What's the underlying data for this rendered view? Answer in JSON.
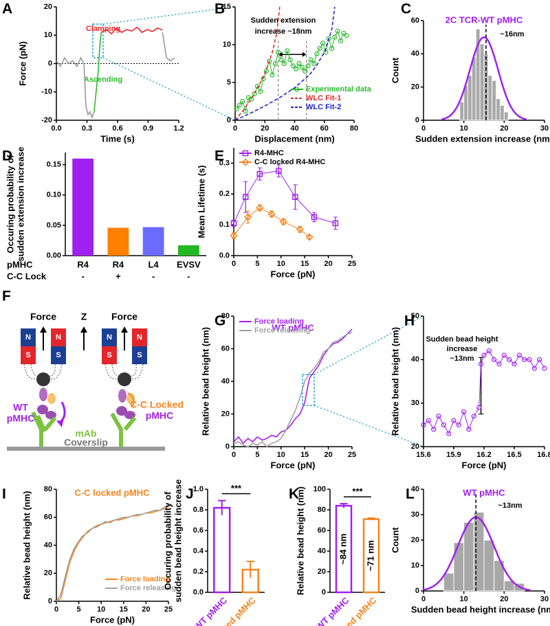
{
  "chart_data": [
    {
      "type": "line",
      "panel_label": "A",
      "xlabel": "Time (s)",
      "ylabel": "Force (pN)",
      "xlim": [
        0,
        1.2
      ],
      "xticks": [
        {
          "value": 0,
          "label": "0.0"
        },
        0.3,
        0.6,
        0.9,
        1.2
      ],
      "ylim": [
        -20,
        20
      ],
      "yticks": [
        -20,
        -10,
        0,
        10,
        20
      ],
      "zero_line": true,
      "annotations": [
        {
          "text": "Clamping",
          "color": "#e8262a"
        },
        {
          "text": "Ascending",
          "color": "#2db82d"
        }
      ],
      "series": [
        {
          "color": "#9a9a9a",
          "x": [
            0,
            0.04,
            0.08,
            0.12,
            0.16,
            0.2,
            0.24,
            0.27,
            0.29,
            0.31,
            0.33,
            0.35,
            0.37,
            1.03,
            1.04,
            1.08,
            1.12,
            1.16
          ],
          "values": [
            1,
            -1,
            2,
            0,
            1,
            -1,
            2,
            0,
            -15,
            -18,
            -17,
            -19,
            -17,
            null,
            11,
            2,
            1,
            2
          ]
        },
        {
          "color": "#2db82d",
          "x": [
            0.37,
            0.39,
            0.41,
            0.42,
            0.43,
            0.44
          ],
          "values": [
            -17,
            -10,
            -3,
            3,
            8,
            11
          ]
        },
        {
          "color": "#e8262a",
          "x": [
            0.44,
            0.49,
            0.54,
            0.59,
            0.64,
            0.69,
            0.74,
            0.79,
            0.84,
            0.89,
            0.94,
            0.99,
            1.04
          ],
          "values": [
            11,
            12,
            10.5,
            12.5,
            11,
            12,
            11.5,
            12.8,
            11,
            12,
            11.3,
            12.5,
            11.8
          ]
        }
      ]
    },
    {
      "type": "line",
      "panel_label": "B",
      "xlabel": "Displacement (nm)",
      "xlim": [
        0,
        80
      ],
      "xticks": [
        0,
        20,
        40,
        60,
        80
      ],
      "ylim": [
        0,
        15
      ],
      "yticks": [
        0,
        5,
        10,
        15
      ],
      "legend": "lower right",
      "legend_text_colored": true,
      "annotations": [
        {
          "text": "Sudden extension",
          "color": "#000000"
        },
        {
          "text": "increase ~18nm",
          "color": "#000000"
        }
      ],
      "vlines": [
        29,
        48
      ],
      "series": [
        {
          "name": "Experimental data",
          "color": "#2db82d",
          "marker": "circle",
          "x": [
            1,
            3,
            5,
            7,
            9,
            11,
            13,
            15,
            17,
            19,
            21,
            23,
            25,
            27,
            29,
            31,
            33,
            35,
            37,
            39,
            41,
            43,
            45,
            47,
            49,
            51,
            53,
            55,
            57,
            59,
            61,
            63,
            65,
            67,
            69,
            71,
            73,
            75
          ],
          "values": [
            1.5,
            2,
            2.5,
            1.2,
            3,
            2.8,
            3.5,
            4.5,
            3.8,
            5.5,
            6.5,
            7.8,
            6,
            7.5,
            9,
            8,
            7.5,
            9.2,
            8,
            7.2,
            6.8,
            7.5,
            7,
            6.5,
            7.2,
            8,
            7.5,
            8.8,
            9.5,
            10.2,
            9,
            10.8,
            9.5,
            11,
            11.8,
            10.5,
            11.5,
            11.2
          ]
        },
        {
          "name": "WLC Fit-1",
          "color": "#e8262a",
          "dashed": true,
          "x": [
            0,
            5,
            10,
            15,
            20,
            25,
            28,
            30
          ],
          "values": [
            0,
            1.2,
            2.6,
            4.2,
            6.2,
            9,
            11.5,
            15
          ]
        },
        {
          "name": "WLC Fit-2",
          "color": "#1c24c8",
          "dashed": true,
          "x": [
            0,
            10,
            20,
            30,
            40,
            50,
            55,
            60,
            65,
            67
          ],
          "values": [
            0,
            0.9,
            1.9,
            3,
            4.3,
            6,
            7.3,
            9,
            12,
            15
          ]
        }
      ]
    },
    {
      "type": "histogram",
      "panel_label": "C",
      "title": "2C TCR-WT pMHC",
      "title_color": "#a020f0",
      "xlabel": "Sudden extension increase (nm)",
      "ylabel": "Count",
      "xlim": [
        0,
        30
      ],
      "xticks": [
        0,
        10,
        20,
        30
      ],
      "ylim": [
        0,
        60
      ],
      "yticks": [
        0,
        20,
        40,
        60
      ],
      "annotations": [
        {
          "text": "~16nm",
          "color": "#000000"
        }
      ],
      "bins": [
        9,
        10,
        11,
        12,
        13,
        14,
        15,
        16,
        17,
        18,
        19,
        20,
        21
      ],
      "counts": [
        11,
        21,
        27,
        38,
        55,
        46,
        40,
        27,
        24,
        13,
        9,
        5
      ],
      "color": "#a8a8a8",
      "fit": {
        "mean": 15,
        "sd": 3.5,
        "amplitude": 50
      },
      "fit_color": "#a020f0",
      "mean_line": 15.5
    },
    {
      "type": "bar",
      "panel_label": "D",
      "ylabel": [
        "Occuring probability of",
        "sudden extension increase"
      ],
      "ylim": [
        0,
        0.17
      ],
      "yticks": [
        {
          "value": 0,
          "label": "0.00"
        },
        {
          "value": 0.05,
          "label": "0.05"
        },
        {
          "value": 0.1,
          "label": "0.10"
        },
        {
          "value": 0.15,
          "label": "0.15"
        }
      ],
      "category_label": "pMHC",
      "categories": [
        "R4",
        "R4",
        "L4",
        "EVSV"
      ],
      "row_label": "C-C Lock",
      "row_values": [
        "-",
        "+",
        "-",
        "-"
      ],
      "values": [
        0.16,
        0.046,
        0.047,
        0.017
      ],
      "colors": [
        "#a020f0",
        "#ff8000",
        "#6b6bff",
        "#22b822"
      ]
    },
    {
      "type": "line",
      "panel_label": "E",
      "xlabel": "Force (pN)",
      "ylabel": "Mean Lifetime (s)",
      "xlim": [
        0,
        25
      ],
      "xticks": [
        0,
        5,
        10,
        15,
        20,
        25
      ],
      "ylim": [
        0,
        0.35
      ],
      "yticks": [
        {
          "value": 0,
          "label": "0.0"
        },
        0.1,
        0.2,
        0.3
      ],
      "legend": "upper left",
      "series": [
        {
          "name": "R4-MHC",
          "color": "#a020f0",
          "marker": "square",
          "x": [
            0,
            2.5,
            5.5,
            9.5,
            13,
            17,
            21.5
          ],
          "values": [
            0.105,
            0.19,
            0.265,
            0.275,
            0.19,
            0.125,
            0.105
          ],
          "errors": [
            0.01,
            0.05,
            0.02,
            0.02,
            0.04,
            0.015,
            0.02
          ]
        },
        {
          "name": "C-C locked R4-MHC",
          "color": "#f5841f",
          "marker": "diamond",
          "x": [
            0,
            3,
            5.5,
            8,
            10.5,
            14,
            16
          ],
          "values": [
            0.065,
            0.125,
            0.155,
            0.135,
            0.11,
            0.085,
            0.06
          ],
          "errors": [
            0.01,
            0.02,
            0.01,
            0.01,
            0.01,
            0.01,
            0.005
          ]
        }
      ]
    },
    {
      "type": "line",
      "panel_label": "G",
      "title": "WT pMHC",
      "title_color": "#a020f0",
      "xlabel": "Force (pN)",
      "ylabel": "Relative bead height (nm)",
      "xlim": [
        0,
        25
      ],
      "xticks": [
        0,
        5,
        10,
        15,
        20,
        25
      ],
      "ylim": [
        0,
        80
      ],
      "yticks": [
        0,
        20,
        40,
        60,
        80
      ],
      "legend": "upper left",
      "legend_text_colored": true,
      "series": [
        {
          "name": "Force loading",
          "color": "#a020f0",
          "x": [
            0,
            1,
            2,
            3,
            4,
            5,
            6,
            7,
            8,
            9,
            10,
            11,
            12,
            13,
            14,
            15,
            16,
            17,
            18,
            19,
            20,
            21,
            22,
            23,
            24,
            25
          ],
          "values": [
            3,
            6,
            2,
            5,
            3,
            6,
            4,
            5,
            7,
            6,
            9,
            10,
            13,
            17,
            20,
            27,
            42,
            46,
            50,
            56,
            60,
            63,
            64,
            66,
            69,
            72
          ]
        },
        {
          "name": "Force releasing",
          "color": "#a0a0a0",
          "x": [
            0,
            1,
            2,
            3,
            4,
            5,
            6,
            7,
            8,
            9,
            10,
            11,
            12,
            13,
            14,
            15,
            16,
            17,
            18,
            19,
            20,
            21,
            22,
            23,
            24,
            25
          ],
          "values": [
            2,
            3,
            1,
            0,
            2,
            1,
            3,
            0,
            2,
            3,
            5,
            10,
            16,
            22,
            30,
            40,
            45,
            48,
            52,
            58,
            60,
            64,
            65,
            67,
            69,
            70
          ]
        }
      ]
    },
    {
      "type": "line",
      "panel_label": "H",
      "xlabel": "Force (pN)",
      "ylabel": "Relative bead height (nm)",
      "xlim": [
        15.6,
        16.8
      ],
      "xticks": [
        15.6,
        15.9,
        16.2,
        16.5,
        16.8
      ],
      "ylim": [
        20,
        50
      ],
      "yticks": [
        20,
        30,
        40,
        50
      ],
      "annotations": [
        {
          "text": "Sudden bead height",
          "color": "#000000"
        },
        {
          "text": "increase",
          "color": "#000000"
        },
        {
          "text": "~13nm",
          "color": "#000000"
        }
      ],
      "step_x": 16.17,
      "step_bar": [
        27.5,
        40.5
      ],
      "series": [
        {
          "color": "#a020f0",
          "marker": "circle",
          "x": [
            15.6,
            15.65,
            15.7,
            15.75,
            15.8,
            15.85,
            15.9,
            15.95,
            16,
            16.05,
            16.1,
            16.15,
            16.17,
            16.2,
            16.25,
            16.3,
            16.35,
            16.4,
            16.45,
            16.5,
            16.55,
            16.6,
            16.65,
            16.7,
            16.75,
            16.8
          ],
          "values": [
            25,
            26,
            24,
            27,
            25,
            23,
            26,
            25,
            28,
            24,
            27,
            29,
            39,
            41,
            42,
            40,
            39,
            41,
            40,
            39,
            41,
            40,
            40,
            38,
            40,
            38
          ]
        }
      ]
    },
    {
      "type": "line",
      "panel_label": "I",
      "title": "C-C locked pMHC",
      "title_color": "#f5841f",
      "xlabel": "Force (pN)",
      "ylabel": "Relative bead height (nm)",
      "xlim": [
        0,
        25
      ],
      "xticks": [
        0,
        5,
        10,
        15,
        20,
        25
      ],
      "ylim": [
        0,
        80
      ],
      "yticks": [
        0,
        20,
        40,
        60,
        80
      ],
      "legend": "lower right",
      "legend_text_colored": true,
      "series": [
        {
          "name": "Force loading",
          "color": "#f5841f",
          "x": [
            0,
            1,
            2,
            3,
            4,
            5,
            6,
            7,
            8,
            9,
            10,
            11,
            12,
            13,
            14,
            15,
            16,
            17,
            18,
            19,
            20,
            21,
            22,
            23,
            24,
            25
          ],
          "values": [
            0,
            2,
            15,
            28,
            36,
            42,
            46,
            50,
            52,
            54,
            55,
            56,
            57,
            58,
            58,
            59,
            60,
            61,
            61,
            62,
            63,
            63,
            64,
            65,
            66,
            68
          ]
        },
        {
          "name": "Force releasing",
          "color": "#a0a0a0",
          "x": [
            0,
            1,
            2,
            3,
            4,
            5,
            6,
            7,
            8,
            9,
            10,
            11,
            12,
            13,
            14,
            15,
            16,
            17,
            18,
            19,
            20,
            21,
            22,
            23,
            24,
            25
          ],
          "values": [
            0,
            5,
            18,
            30,
            38,
            43,
            47,
            49,
            52,
            53,
            55,
            57,
            56,
            58,
            59,
            60,
            60,
            61,
            62,
            62,
            63,
            64,
            65,
            65,
            67,
            69
          ]
        }
      ]
    },
    {
      "type": "bar",
      "panel_label": "J",
      "ylabel": [
        "Occuring probability of",
        "sudden bead height increase"
      ],
      "ylim": [
        0,
        1
      ],
      "yticks": [
        {
          "value": 0,
          "label": "0.0"
        },
        0.2,
        0.4,
        0.6,
        0.8,
        {
          "value": 1,
          "label": "1.0"
        }
      ],
      "categories": [
        "WT pMHC",
        "C-C locked pMHC"
      ],
      "rotate_labels": true,
      "outline": true,
      "values": [
        0.82,
        0.22
      ],
      "errors": [
        0.07,
        0.08
      ],
      "colors": [
        "#a020f0",
        "#f5841f"
      ],
      "significance": "***"
    },
    {
      "type": "bar",
      "panel_label": "K",
      "ylabel": "Relative bead height (nm)",
      "ylim": [
        0,
        100
      ],
      "yticks": [
        0,
        20,
        40,
        60,
        80,
        100
      ],
      "categories": [
        "WT pMHC",
        "C-C locked pMHC"
      ],
      "rotate_labels": true,
      "outline": true,
      "values": [
        84,
        71
      ],
      "value_labels": [
        "~84 nm",
        "~71 nm"
      ],
      "errors": [
        2,
        1
      ],
      "colors": [
        "#a020f0",
        "#f5841f"
      ],
      "significance": "***"
    },
    {
      "type": "histogram",
      "panel_label": "L",
      "title": "WT pMHC",
      "title_color": "#a020f0",
      "xlabel": "Sudden bead height increase (nm)",
      "ylabel": "Count",
      "xlim": [
        0,
        30
      ],
      "xticks": [
        0,
        10,
        20,
        30
      ],
      "ylim": [
        0,
        40
      ],
      "yticks": [
        0,
        10,
        20,
        30,
        40
      ],
      "annotations": [
        {
          "text": "~13nm",
          "color": "#000000"
        }
      ],
      "bins": [
        5,
        7.5,
        10,
        12.5,
        15,
        17.5,
        20,
        22.5,
        25
      ],
      "counts": [
        7,
        19,
        27,
        31,
        20,
        12,
        4,
        3
      ],
      "color": "#a8a8a8",
      "fit": {
        "mean": 13,
        "sd": 4.5,
        "amplitude": 29
      },
      "fit_color": "#a020f0",
      "mean_line": 13
    }
  ],
  "diagram": {
    "panel_label": "F",
    "force": "Force",
    "z": "Z",
    "magnet": [
      "N",
      "S"
    ],
    "left_label": [
      "WT",
      "pMHC"
    ],
    "right_label": [
      "C-C Locked",
      "pMHC"
    ],
    "antibody": "mAb",
    "surface": "Coverslip"
  }
}
